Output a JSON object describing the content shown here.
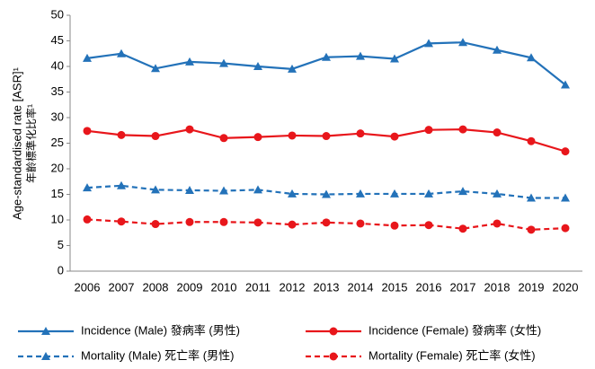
{
  "chart_data": {
    "type": "line",
    "y_label": "Age-standardised rate [ASR]¹",
    "y_label_2": "年齡標準化比率¹",
    "categories": [
      "2006",
      "2007",
      "2008",
      "2009",
      "2010",
      "2011",
      "2012",
      "2013",
      "2014",
      "2015",
      "2016",
      "2017",
      "2018",
      "2019",
      "2020"
    ],
    "series": [
      {
        "name": "Incidence (Male) 發病率 (男性)",
        "color": "#2372b9",
        "marker": "triangle",
        "dashed": false,
        "values": [
          41.6,
          42.5,
          39.6,
          40.9,
          40.6,
          40.0,
          39.5,
          41.8,
          42.0,
          41.5,
          44.5,
          44.7,
          43.2,
          41.7,
          36.4
        ]
      },
      {
        "name": "Incidence (Female) 發病率 (女性)",
        "color": "#e8161b",
        "marker": "circle",
        "dashed": false,
        "values": [
          27.4,
          26.6,
          26.4,
          27.7,
          26.0,
          26.2,
          26.5,
          26.4,
          26.9,
          26.3,
          27.6,
          27.7,
          27.1,
          25.4,
          23.4
        ]
      },
      {
        "name": "Mortality (Male) 死亡率 (男性)",
        "color": "#2372b9",
        "marker": "triangle",
        "dashed": true,
        "values": [
          16.3,
          16.7,
          15.9,
          15.8,
          15.7,
          15.9,
          15.1,
          15.0,
          15.1,
          15.1,
          15.1,
          15.6,
          15.1,
          14.3,
          14.3
        ]
      },
      {
        "name": "Mortality (Female) 死亡率 (女性)",
        "color": "#e8161b",
        "marker": "circle",
        "dashed": true,
        "values": [
          10.1,
          9.7,
          9.2,
          9.6,
          9.6,
          9.5,
          9.1,
          9.5,
          9.3,
          8.9,
          9.0,
          8.3,
          9.3,
          8.1,
          8.4
        ]
      }
    ],
    "ylim": [
      0,
      50
    ],
    "yticks": [
      0,
      5,
      10,
      15,
      20,
      25,
      30,
      35,
      40,
      45,
      50
    ],
    "grid": false,
    "legend": "bottom"
  }
}
